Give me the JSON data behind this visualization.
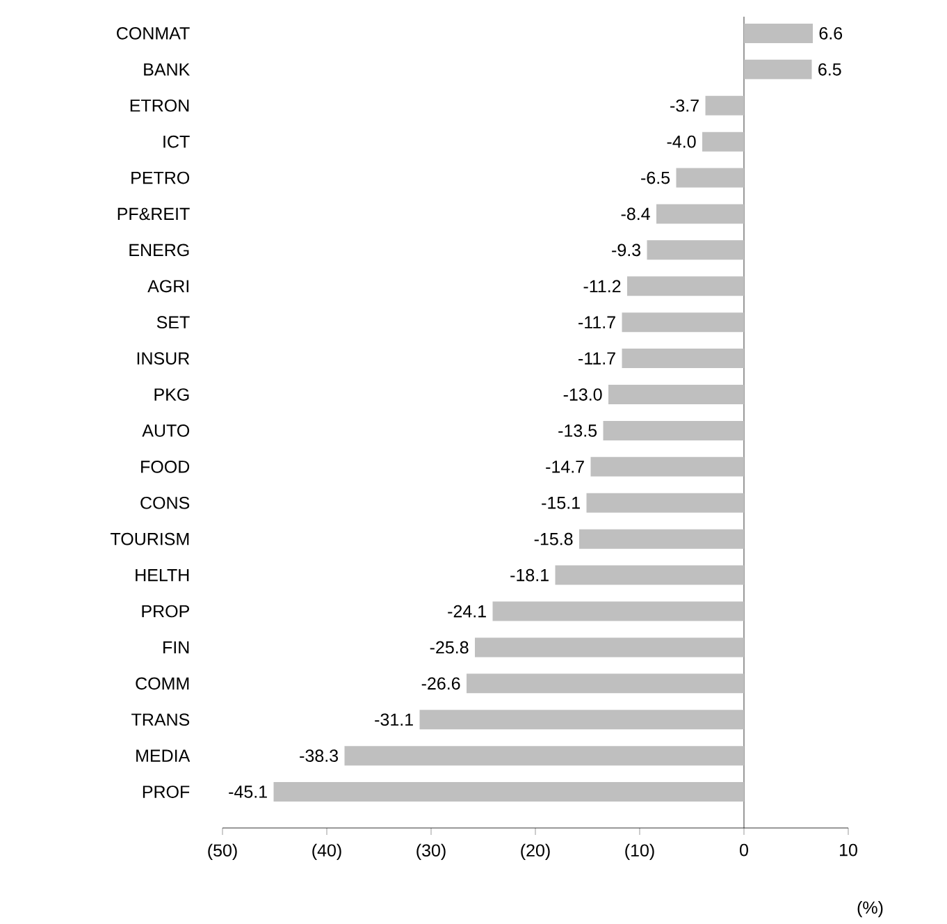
{
  "chart_data": {
    "type": "bar",
    "orientation": "horizontal",
    "xlabel": "(%)",
    "categories": [
      "CONMAT",
      "BANK",
      "ETRON",
      "ICT",
      "PETRO",
      "PF&REIT",
      "ENERG",
      "AGRI",
      "SET",
      "INSUR",
      "PKG",
      "AUTO",
      "FOOD",
      "CONS",
      "TOURISM",
      "HELTH",
      "PROP",
      "FIN",
      "COMM",
      "TRANS",
      "MEDIA",
      "PROF"
    ],
    "values": [
      6.6,
      6.5,
      -3.7,
      -4.0,
      -6.5,
      -8.4,
      -9.3,
      -11.2,
      -11.7,
      -11.7,
      -13.0,
      -13.5,
      -14.7,
      -15.1,
      -15.8,
      -18.1,
      -24.1,
      -25.8,
      -26.6,
      -31.1,
      -38.3,
      -45.1
    ],
    "value_labels": [
      "6.6",
      "6.5",
      "-3.7",
      "-4.0",
      "-6.5",
      "-8.4",
      "-9.3",
      "-11.2",
      "-11.7",
      "-11.7",
      "-13.0",
      "-13.5",
      "-14.7",
      "-15.1",
      "-15.8",
      "-18.1",
      "-24.1",
      "-25.8",
      "-26.6",
      "-31.1",
      "-38.3",
      "-45.1"
    ],
    "color": "#bfbfbf",
    "xlim": [
      -50,
      10
    ],
    "xticks": [
      {
        "value": -50,
        "label": "(50)"
      },
      {
        "value": -40,
        "label": "(40)"
      },
      {
        "value": -30,
        "label": "(30)"
      },
      {
        "value": -20,
        "label": "(20)"
      },
      {
        "value": -10,
        "label": "(10)"
      },
      0,
      10
    ]
  }
}
